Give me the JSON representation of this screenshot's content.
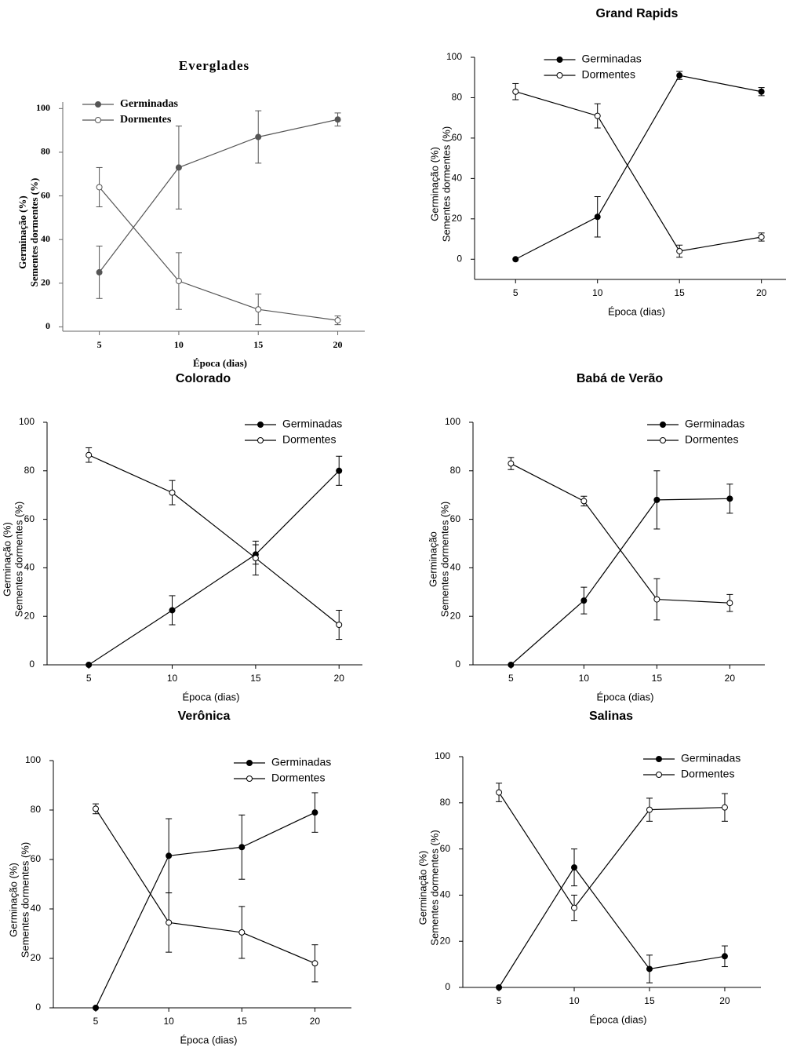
{
  "chart_data": [
    {
      "type": "line",
      "title": "Everglades",
      "xlabel": "Época (dias)",
      "ylabel": [
        "Germinação (%)",
        "Sementes dormentes (%)"
      ],
      "x": [
        5,
        10,
        15,
        20
      ],
      "xlim": [
        2.7,
        21.7
      ],
      "ylim": [
        -2,
        103
      ],
      "xticks": [
        5,
        10,
        15,
        20
      ],
      "yticks": [
        0,
        20,
        40,
        60,
        80,
        100
      ],
      "legend": "upper left",
      "series": [
        {
          "name": "Germinadas",
          "color": "#555555",
          "fill": "filled",
          "values": [
            25,
            73,
            87,
            95
          ],
          "errors": [
            12,
            19,
            12,
            3
          ]
        },
        {
          "name": "Dormentes",
          "color": "#555555",
          "fill": "open",
          "values": [
            64,
            21,
            8,
            3
          ],
          "errors": [
            9,
            13,
            7,
            2
          ]
        }
      ]
    },
    {
      "type": "line",
      "title": "Grand Rapids",
      "xlabel": "Época (dias)",
      "ylabel": [
        "Germinação (%)",
        "Sementes dormentes (%)"
      ],
      "x": [
        5,
        10,
        15,
        20
      ],
      "xlim": [
        2.5,
        21.5
      ],
      "ylim": [
        -10,
        100
      ],
      "xticks": [
        5,
        10,
        15,
        20
      ],
      "yticks": [
        0,
        20,
        40,
        60,
        80,
        100
      ],
      "legend": "upper center",
      "series": [
        {
          "name": "Germinadas",
          "color": "#000000",
          "fill": "filled",
          "values": [
            0,
            21,
            91,
            83
          ],
          "errors": [
            0,
            10,
            2,
            2
          ]
        },
        {
          "name": "Dormentes",
          "color": "#000000",
          "fill": "open",
          "values": [
            83,
            71,
            4,
            11
          ],
          "errors": [
            4,
            6,
            3,
            2
          ]
        }
      ]
    },
    {
      "type": "line",
      "title": "Colorado",
      "xlabel": "Época (dias)",
      "ylabel": [
        "Germinação (%)",
        "Sementes dormentes (%)"
      ],
      "x": [
        5,
        10,
        15,
        20
      ],
      "xlim": [
        2.5,
        21.4
      ],
      "ylim": [
        0,
        100
      ],
      "xticks": [
        5,
        10,
        15,
        20
      ],
      "yticks": [
        0,
        20,
        40,
        60,
        80,
        100
      ],
      "legend": "upper right",
      "series": [
        {
          "name": "Germinadas",
          "color": "#000000",
          "fill": "filled",
          "values": [
            0,
            22.5,
            45.5,
            80
          ],
          "errors": [
            0,
            6,
            4,
            6
          ]
        },
        {
          "name": "Dormentes",
          "color": "#000000",
          "fill": "open",
          "values": [
            86.5,
            71,
            44,
            16.5
          ],
          "errors": [
            3,
            5,
            7,
            6
          ]
        }
      ]
    },
    {
      "type": "line",
      "title": "Babá de Verão",
      "xlabel": "Época (dias)",
      "ylabel": [
        "Germinação",
        "Sementes dormentes (%)"
      ],
      "x": [
        5,
        10,
        15,
        20
      ],
      "xlim": [
        2.4,
        22.4
      ],
      "ylim": [
        0,
        100
      ],
      "xticks": [
        5,
        10,
        15,
        20
      ],
      "yticks": [
        0,
        20,
        40,
        60,
        80,
        100
      ],
      "legend": "upper right",
      "series": [
        {
          "name": "Germinadas",
          "color": "#000000",
          "fill": "filled",
          "values": [
            0,
            26.5,
            68,
            68.5
          ],
          "errors": [
            0,
            5.5,
            12,
            6
          ]
        },
        {
          "name": "Dormentes",
          "color": "#000000",
          "fill": "open",
          "values": [
            83,
            67.5,
            27,
            25.5
          ],
          "errors": [
            2.5,
            2,
            8.5,
            3.5
          ]
        }
      ]
    },
    {
      "type": "line",
      "title": "Verônica",
      "xlabel": "Época (dias)",
      "ylabel": [
        "Germinação (%)",
        "Sementes dormentes (%)"
      ],
      "x": [
        5,
        10,
        15,
        20
      ],
      "xlim": [
        2.1,
        22.5
      ],
      "ylim": [
        0,
        100
      ],
      "xticks": [
        5,
        10,
        15,
        20
      ],
      "yticks": [
        0,
        20,
        40,
        60,
        80,
        100
      ],
      "legend": "upper right",
      "series": [
        {
          "name": "Germinadas",
          "color": "#000000",
          "fill": "filled",
          "values": [
            0,
            61.5,
            65,
            79
          ],
          "errors": [
            0,
            15,
            13,
            8
          ]
        },
        {
          "name": "Dormentes",
          "color": "#000000",
          "fill": "open",
          "values": [
            80.5,
            34.5,
            30.5,
            18
          ],
          "errors": [
            2,
            12,
            10.5,
            7.5
          ]
        }
      ]
    },
    {
      "type": "line",
      "title": "Salinas",
      "xlabel": "Época (dias)",
      "ylabel": [
        "Germinação (%)",
        "Sementes dormentes (%)"
      ],
      "x": [
        5,
        10,
        15,
        20
      ],
      "xlim": [
        2.6,
        22.4
      ],
      "ylim": [
        0,
        100
      ],
      "xticks": [
        5,
        10,
        15,
        20
      ],
      "yticks": [
        0,
        20,
        40,
        60,
        80,
        100
      ],
      "legend": "upper right",
      "series": [
        {
          "name": "Germinadas",
          "color": "#000000",
          "fill": "filled",
          "values": [
            0,
            52,
            8,
            13.5
          ],
          "errors": [
            0,
            8,
            6,
            4.5
          ]
        },
        {
          "name": "Dormentes",
          "color": "#000000",
          "fill": "open",
          "values": [
            84.5,
            34.5,
            77,
            78
          ],
          "errors": [
            4,
            5.5,
            5,
            6
          ]
        }
      ]
    }
  ]
}
